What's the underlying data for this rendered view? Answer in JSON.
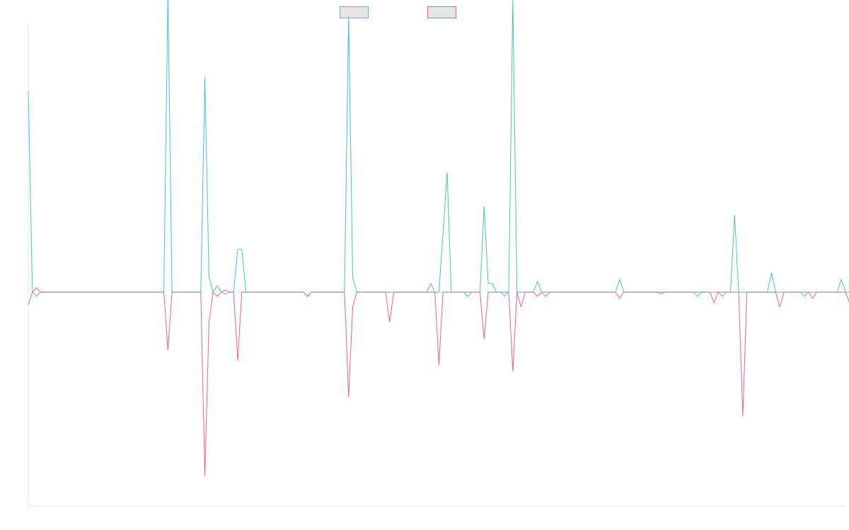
{
  "chart_data": {
    "type": "line",
    "title": "",
    "xlabel": "",
    "ylabel": "",
    "grid": false,
    "legend_position": "top",
    "x_count": 200,
    "ylim": [
      -1,
      1.25
    ],
    "series": [
      {
        "name": "",
        "color": "#4bc0c0",
        "legend_fill": "#e6e6e6",
        "values": [
          0.94,
          0.0,
          -0.02,
          0.0,
          0.0,
          0.0,
          0.0,
          0.0,
          0.0,
          0.0,
          0.0,
          0.0,
          0.0,
          0.0,
          0.0,
          0.0,
          0.0,
          0.0,
          0.0,
          0.0,
          0.0,
          0.0,
          0.0,
          0.0,
          0.0,
          0.0,
          0.0,
          0.0,
          0.0,
          0.0,
          0.0,
          0.0,
          0.0,
          0.0,
          1.4,
          0.0,
          0.0,
          0.0,
          0.0,
          0.0,
          0.0,
          0.0,
          0.0,
          1.0,
          0.07,
          0.0,
          0.03,
          0.0,
          -0.01,
          0.0,
          0.0,
          0.2,
          0.2,
          0.0,
          0.0,
          0.0,
          0.0,
          0.0,
          0.0,
          0.0,
          0.0,
          0.0,
          0.0,
          0.0,
          0.0,
          0.0,
          0.0,
          0.0,
          -0.02,
          0.0,
          0.0,
          0.0,
          0.0,
          0.0,
          0.0,
          0.0,
          0.0,
          0.0,
          1.29,
          0.07,
          0.0,
          0.0,
          0.0,
          0.0,
          0.0,
          0.0,
          0.0,
          0.0,
          0.0,
          0.0,
          0.0,
          0.0,
          0.0,
          0.0,
          0.0,
          0.0,
          0.0,
          0.0,
          0.04,
          0.0,
          0.0,
          0.28,
          0.56,
          0.0,
          0.0,
          0.0,
          0.0,
          -0.02,
          0.0,
          0.0,
          0.0,
          0.4,
          0.04,
          0.04,
          0.0,
          0.0,
          -0.02,
          0.0,
          1.37,
          0.0,
          0.0,
          0.0,
          0.0,
          0.0,
          0.05,
          0.0,
          -0.02,
          0.0,
          0.0,
          0.0,
          0.0,
          0.0,
          0.0,
          0.0,
          0.0,
          0.0,
          0.0,
          0.0,
          0.0,
          0.0,
          0.0,
          0.0,
          0.0,
          0.0,
          0.06,
          0.0,
          0.0,
          0.0,
          0.0,
          0.0,
          0.0,
          0.0,
          0.0,
          0.0,
          -0.01,
          0.0,
          0.0,
          0.0,
          0.0,
          0.0,
          0.0,
          0.0,
          0.0,
          -0.02,
          0.0,
          0.0,
          0.0,
          0.0,
          0.0,
          -0.02,
          0.0,
          0.0,
          0.36,
          0.0,
          0.0,
          0.0,
          0.0,
          0.0,
          0.0,
          0.0,
          0.0,
          0.09,
          0.0,
          0.0,
          0.0,
          0.0,
          0.0,
          0.0,
          0.0,
          -0.02,
          0.0,
          0.0,
          0.0,
          0.0,
          0.0,
          0.0,
          0.0,
          0.0,
          0.06,
          0.0,
          0.0,
          0.0,
          0.0,
          0.0,
          0.0,
          0.0,
          0.0,
          0.0,
          0.0,
          0.02,
          0.04
        ]
      },
      {
        "name": "",
        "color": "#f35f89",
        "legend_fill": "#e6e6e6",
        "values": [
          -0.06,
          0.0,
          0.02,
          0.0,
          0.0,
          0.0,
          0.0,
          0.0,
          0.0,
          0.0,
          0.0,
          0.0,
          0.0,
          0.0,
          0.0,
          0.0,
          0.0,
          0.0,
          0.0,
          0.0,
          0.0,
          0.0,
          0.0,
          0.0,
          0.0,
          0.0,
          0.0,
          0.0,
          0.0,
          0.0,
          0.0,
          0.0,
          0.0,
          0.0,
          -0.27,
          0.0,
          0.0,
          0.0,
          0.0,
          0.0,
          0.0,
          0.0,
          0.0,
          -0.86,
          -0.14,
          0.0,
          -0.02,
          0.0,
          0.01,
          0.0,
          0.0,
          -0.32,
          0.0,
          0.0,
          0.0,
          0.0,
          0.0,
          0.0,
          0.0,
          0.0,
          0.0,
          0.0,
          0.0,
          0.0,
          0.0,
          0.0,
          0.0,
          0.0,
          -0.02,
          0.0,
          0.0,
          0.0,
          0.0,
          0.0,
          0.0,
          0.0,
          0.0,
          0.0,
          -0.49,
          -0.07,
          0.0,
          0.0,
          0.0,
          0.0,
          0.0,
          0.0,
          0.0,
          0.0,
          -0.14,
          0.0,
          0.0,
          0.0,
          0.0,
          0.0,
          0.0,
          0.0,
          0.0,
          0.0,
          0.0,
          0.0,
          -0.34,
          0.0,
          0.0,
          0.0,
          0.0,
          0.0,
          0.0,
          0.0,
          0.0,
          0.0,
          0.0,
          -0.22,
          0.0,
          0.0,
          0.0,
          0.0,
          0.0,
          0.0,
          -0.37,
          0.0,
          -0.07,
          0.0,
          0.0,
          0.0,
          -0.02,
          0.0,
          0.0,
          0.0,
          0.0,
          0.0,
          0.0,
          0.0,
          0.0,
          0.0,
          0.0,
          0.0,
          0.0,
          0.0,
          0.0,
          0.0,
          0.0,
          0.0,
          0.0,
          0.0,
          -0.03,
          0.0,
          0.0,
          0.0,
          0.0,
          0.0,
          0.0,
          0.0,
          0.0,
          0.0,
          0.0,
          0.0,
          0.0,
          0.0,
          0.0,
          0.0,
          0.0,
          0.0,
          0.0,
          0.0,
          0.0,
          0.0,
          0.0,
          -0.05,
          0.0,
          0.0,
          0.0,
          0.0,
          0.0,
          0.0,
          -0.58,
          0.0,
          0.0,
          0.0,
          0.0,
          0.0,
          0.0,
          0.0,
          0.0,
          -0.07,
          0.0,
          0.0,
          0.0,
          0.0,
          0.0,
          0.0,
          0.0,
          -0.03,
          0.0,
          0.0,
          0.0,
          0.0,
          0.0,
          0.0,
          0.0,
          0.0,
          -0.05,
          0.0,
          0.0,
          0.0,
          0.0,
          0.0,
          0.0,
          0.0,
          0.0,
          0.0,
          0.0,
          -0.03,
          -0.05
        ]
      }
    ]
  }
}
